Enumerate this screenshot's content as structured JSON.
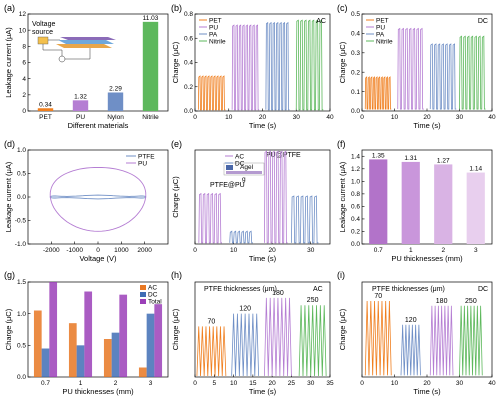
{
  "colors": {
    "orange": "#F07F1F",
    "purple": "#B57ED3",
    "blue": "#6F8FC6",
    "green": "#5DB85C",
    "pu_dark": "#B273C9",
    "pu_mid": "#C996DB",
    "pu_light": "#D9B3E4",
    "pu_pale": "#E8CFEE",
    "ac": "#E87722",
    "dc": "#3F6DB5",
    "total": "#9B3FB8"
  },
  "panels": {
    "a": {
      "letter": "(a)",
      "text_a": "Voltage",
      "text_b": "source"
    },
    "e": {
      "inset_a": "Agel",
      "inset_b": "g",
      "inset_b2": "PTFE@PU",
      "label_pu_ptfe": "PU@PTFE"
    },
    "h": {
      "title": "PTFE thicknesses (μm)",
      "mode": "AC",
      "labels": [
        "70",
        "120",
        "180",
        "250"
      ]
    },
    "i": {
      "title": "PTFE thicknesses (μm)",
      "mode": "DC",
      "labels": [
        "70",
        "120",
        "180",
        "250"
      ]
    }
  },
  "chart_data": [
    {
      "id": "a",
      "type": "bar",
      "title": "",
      "xlabel": "Different materials",
      "ylabel": "Leakage current (μA)",
      "categories": [
        "PET",
        "PU",
        "Nylon",
        "Nitrile"
      ],
      "values": [
        0.34,
        1.32,
        2.29,
        11.03
      ],
      "value_labels": [
        "0.34",
        "1.32",
        "2.29",
        "11.03"
      ],
      "ylim": [
        0,
        12
      ],
      "yticks": [
        "0",
        "2",
        "4",
        "6",
        "8",
        "10",
        "12"
      ]
    },
    {
      "id": "b",
      "type": "line",
      "xlabel": "Time (s)",
      "ylabel": "Charge (μC)",
      "mode": "AC",
      "xlim": [
        0,
        40
      ],
      "ylim": [
        0,
        0.8
      ],
      "xticks": [
        "0",
        "10",
        "20",
        "30",
        "40"
      ],
      "yticks": [
        "0.0",
        "0.2",
        "0.4",
        "0.6",
        "0.8"
      ],
      "series": [
        {
          "name": "PET",
          "x_start": 1,
          "x_end": 9,
          "peak": 0.28,
          "cycles": 9
        },
        {
          "name": "PU",
          "x_start": 11,
          "x_end": 19,
          "peak": 0.7,
          "cycles": 8
        },
        {
          "name": "PA",
          "x_start": 21,
          "x_end": 28,
          "peak": 0.72,
          "cycles": 7
        },
        {
          "name": "Nitrile",
          "x_start": 30,
          "x_end": 38,
          "peak": 0.74,
          "cycles": 7
        }
      ]
    },
    {
      "id": "c",
      "type": "line",
      "xlabel": "Time (s)",
      "ylabel": "Charge (μC)",
      "mode": "DC",
      "xlim": [
        0,
        40
      ],
      "ylim": [
        0,
        0.5
      ],
      "xticks": [
        "0",
        "10",
        "20",
        "30",
        "40"
      ],
      "yticks": [
        "0.0",
        "0.1",
        "0.2",
        "0.3",
        "0.4",
        "0.5"
      ],
      "series": [
        {
          "name": "PET",
          "x_start": 1,
          "x_end": 9,
          "peak": 0.17,
          "cycles": 10
        },
        {
          "name": "PU",
          "x_start": 11,
          "x_end": 19,
          "peak": 0.42,
          "cycles": 7
        },
        {
          "name": "PA",
          "x_start": 21,
          "x_end": 29,
          "peak": 0.34,
          "cycles": 7
        },
        {
          "name": "Nitrile",
          "x_start": 30,
          "x_end": 38,
          "peak": 0.38,
          "cycles": 7
        }
      ]
    },
    {
      "id": "d",
      "type": "line",
      "xlabel": "Voltage (V)",
      "ylabel": "Leakage current (μA)",
      "xlim": [
        -3000,
        3000
      ],
      "ylim": [
        -1.0,
        1.0
      ],
      "xticks": [
        "-2000",
        "-1000",
        "0",
        "1000",
        "2000"
      ],
      "yticks": [
        "-1.0",
        "-0.5",
        "0.0",
        "0.5",
        "1.0"
      ],
      "series": [
        {
          "name": "PTFE",
          "loop_amplitude": 0.03
        },
        {
          "name": "PU",
          "loop_amplitude": 0.68
        }
      ]
    },
    {
      "id": "e",
      "type": "line",
      "xlabel": "Time (s)",
      "ylabel": "Charge (μC)",
      "xlim": [
        0,
        35
      ],
      "ylim": [
        0,
        0.8
      ],
      "xticks": [
        "0",
        "10",
        "20",
        "30"
      ],
      "series": [
        {
          "name": "AC",
          "segments": [
            {
              "x_start": 1,
              "x_end": 7,
              "peak": 0.42
            },
            {
              "x_start": 18,
              "x_end": 24,
              "peak": 0.78
            }
          ]
        },
        {
          "name": "DC",
          "segments": [
            {
              "x_start": 9,
              "x_end": 15,
              "peak": 0.1
            },
            {
              "x_start": 25,
              "x_end": 32,
              "peak": 0.4
            }
          ]
        }
      ]
    },
    {
      "id": "f",
      "type": "bar",
      "xlabel": "PU thicknesses (mm)",
      "ylabel": "Leakage current (μA)",
      "categories": [
        "0.7",
        "1",
        "2",
        "3"
      ],
      "values": [
        1.35,
        1.31,
        1.27,
        1.14
      ],
      "value_labels": [
        "1.35",
        "1.31",
        "1.27",
        "1.14"
      ],
      "ylim": [
        0,
        1.5
      ],
      "yticks": [
        "0.0",
        "0.2",
        "0.4",
        "0.6",
        "0.8",
        "1.0",
        "1.2",
        "1.4"
      ]
    },
    {
      "id": "g",
      "type": "bar",
      "xlabel": "PU thicknesses (mm)",
      "ylabel": "Charge (μC)",
      "categories": [
        "0.7",
        "1",
        "2",
        "3"
      ],
      "ylim": [
        0,
        1.5
      ],
      "yticks": [
        "0.0",
        "0.5",
        "1.0",
        "1.5"
      ],
      "legend": "top-right",
      "series": [
        {
          "name": "AC",
          "values": [
            1.05,
            0.85,
            0.6,
            0.15
          ]
        },
        {
          "name": "DC",
          "values": [
            0.45,
            0.5,
            0.7,
            1.0
          ]
        },
        {
          "name": "Total",
          "values": [
            1.5,
            1.35,
            1.3,
            1.15
          ]
        }
      ]
    },
    {
      "id": "h",
      "type": "line",
      "xlabel": "Time (s)",
      "ylabel": "Charge (μC)",
      "xlim": [
        0,
        35
      ],
      "ylim": [
        0,
        0.9
      ],
      "xticks": [
        "0",
        "5",
        "10",
        "15",
        "20",
        "25",
        "30",
        "35"
      ],
      "series": [
        {
          "name": "70",
          "x_start": 0.5,
          "x_end": 8,
          "peak": 0.48,
          "cycles": 8
        },
        {
          "name": "120",
          "x_start": 9.5,
          "x_end": 16.5,
          "peak": 0.6,
          "cycles": 7
        },
        {
          "name": "180",
          "x_start": 18,
          "x_end": 25,
          "peak": 0.75,
          "cycles": 7
        },
        {
          "name": "250",
          "x_start": 27,
          "x_end": 34,
          "peak": 0.68,
          "cycles": 7
        }
      ]
    },
    {
      "id": "i",
      "type": "line",
      "xlabel": "Time (s)",
      "ylabel": "Charge (μC)",
      "xlim": [
        0,
        40
      ],
      "ylim": [
        0,
        0.6
      ],
      "xticks": [
        "0",
        "10",
        "20",
        "30",
        "40"
      ],
      "series": [
        {
          "name": "70",
          "x_start": 1,
          "x_end": 9,
          "peak": 0.48,
          "cycles": 7
        },
        {
          "name": "120",
          "x_start": 12,
          "x_end": 18,
          "peak": 0.33,
          "cycles": 6
        },
        {
          "name": "180",
          "x_start": 21,
          "x_end": 28,
          "peak": 0.45,
          "cycles": 7
        },
        {
          "name": "250",
          "x_start": 30,
          "x_end": 37,
          "peak": 0.45,
          "cycles": 7
        }
      ]
    }
  ]
}
